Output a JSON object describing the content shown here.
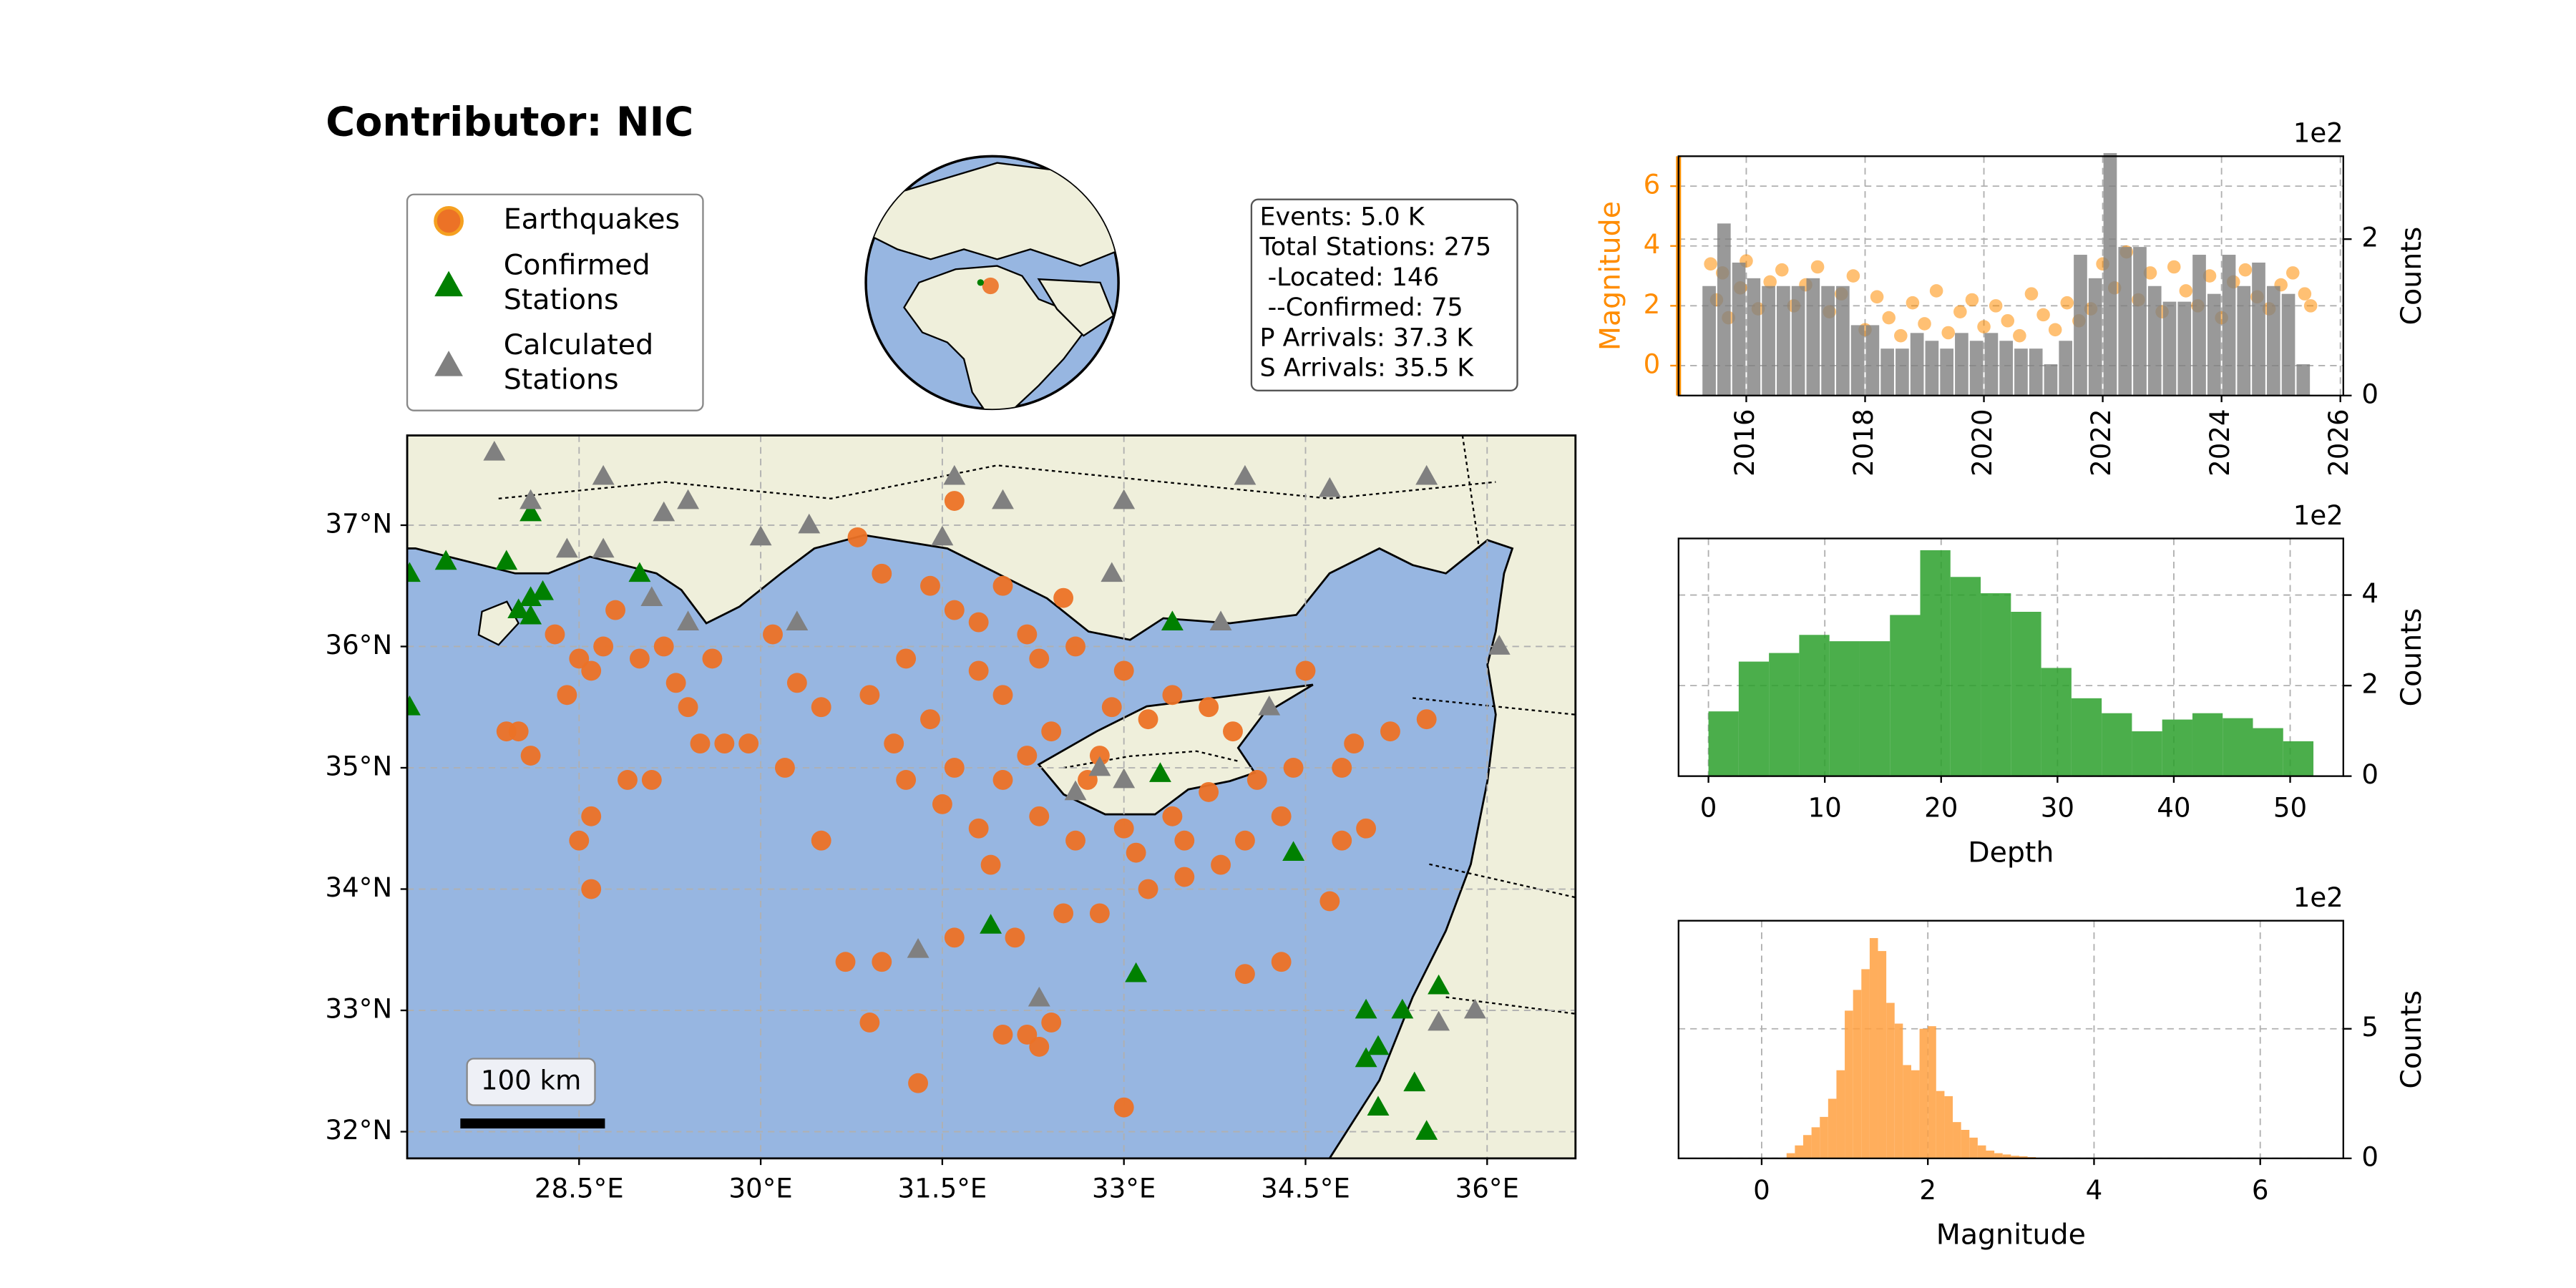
{
  "title": "Contributor: NIC",
  "stats": [
    "Events: 5.0 K",
    "Total Stations: 275",
    " -Located: 146",
    " --Confirmed: 75",
    "P Arrivals: 37.3 K",
    "S Arrivals: 35.5 K"
  ],
  "map": {
    "xlim": [
      27.08,
      36.73
    ],
    "ylim": [
      31.78,
      37.74
    ],
    "xticks": [
      {
        "value": 28.5,
        "label": "28.5°E"
      },
      {
        "value": 30,
        "label": "30°E"
      },
      {
        "value": 31.5,
        "label": "31.5°E"
      },
      {
        "value": 33,
        "label": "33°E"
      },
      {
        "value": 34.5,
        "label": "34.5°E"
      },
      {
        "value": 36,
        "label": "36°E"
      }
    ],
    "yticks": [
      {
        "value": 32,
        "label": "32°N"
      },
      {
        "value": 33,
        "label": "33°N"
      },
      {
        "value": 34,
        "label": "34°N"
      },
      {
        "value": 35,
        "label": "35°N"
      },
      {
        "value": 36,
        "label": "36°N"
      },
      {
        "value": 37,
        "label": "37°N"
      }
    ],
    "scale_bar": "100 km",
    "layers": [
      {
        "name": [
          "Earthquakes"
        ],
        "marker": "circle",
        "color": "#ec7226",
        "lon": [
          28.0,
          28.1,
          27.9,
          28.4,
          28.5,
          28.6,
          28.3,
          28.7,
          29.0,
          29.2,
          29.3,
          29.4,
          29.5,
          29.7,
          29.9,
          29.6,
          30.1,
          30.3,
          30.5,
          30.2,
          29.1,
          28.9,
          28.6,
          28.5,
          28.6,
          28.8,
          30.8,
          30.5,
          30.7,
          31.0,
          30.9,
          31.3,
          31.6,
          32.0,
          32.2,
          32.4,
          32.3,
          33.0,
          34.0,
          34.3,
          34.7,
          34.8,
          35.0,
          35.2,
          34.9,
          34.8,
          35.5,
          34.5,
          31.6,
          31.0,
          31.2,
          31.4,
          31.6,
          31.8,
          31.9,
          32.1,
          32.5,
          32.8,
          33.2,
          33.5,
          33.8,
          34.0,
          34.3,
          34.4,
          33.9,
          33.4,
          33.0,
          32.6,
          32.2,
          31.8,
          31.6,
          32.0,
          32.4,
          32.0,
          32.3,
          32.6,
          33.0,
          33.4,
          33.7,
          34.1,
          32.8,
          31.4,
          31.1,
          30.9,
          32.5,
          32.0,
          33.2,
          32.7,
          33.5,
          31.8,
          32.3,
          32.9,
          33.7,
          31.5,
          31.2,
          32.2,
          33.1
        ],
        "lat": [
          35.3,
          35.1,
          35.3,
          35.6,
          35.9,
          35.8,
          36.1,
          36.0,
          35.9,
          36.0,
          35.7,
          35.5,
          35.2,
          35.2,
          35.2,
          35.9,
          36.1,
          35.7,
          35.5,
          35.0,
          34.9,
          34.9,
          34.6,
          34.4,
          34.0,
          36.3,
          36.9,
          34.4,
          33.4,
          33.4,
          32.9,
          32.4,
          33.6,
          32.8,
          32.8,
          32.9,
          32.7,
          32.2,
          33.3,
          33.4,
          33.9,
          34.4,
          34.5,
          35.3,
          35.2,
          35.0,
          35.4,
          35.8,
          37.2,
          36.6,
          35.9,
          35.4,
          35.0,
          34.5,
          34.2,
          33.6,
          33.8,
          33.8,
          34.0,
          34.1,
          34.2,
          34.4,
          34.6,
          35.0,
          35.3,
          35.6,
          35.8,
          36.0,
          36.1,
          36.2,
          36.3,
          35.6,
          35.3,
          34.9,
          34.6,
          34.4,
          34.5,
          34.6,
          34.8,
          34.9,
          35.1,
          36.5,
          35.2,
          35.6,
          36.4,
          36.5,
          35.4,
          34.9,
          34.4,
          35.8,
          35.9,
          35.5,
          35.5,
          34.7,
          34.9,
          35.1,
          34.3
        ]
      },
      {
        "name": [
          "Confirmed",
          "Stations"
        ],
        "marker": "triangle",
        "color": "#008000",
        "lon": [
          27.1,
          27.4,
          27.9,
          28.0,
          28.1,
          28.1,
          28.2,
          28.1,
          29.0,
          27.1,
          31.9,
          33.1,
          33.4,
          34.4,
          35.0,
          35.1,
          35.0,
          35.1,
          35.4,
          35.5,
          35.3,
          35.6,
          33.3
        ],
        "lat": [
          36.6,
          36.7,
          36.7,
          36.3,
          36.4,
          36.25,
          36.45,
          37.1,
          36.6,
          35.5,
          33.7,
          33.3,
          36.2,
          34.3,
          32.6,
          32.2,
          33.0,
          32.7,
          32.4,
          32.0,
          33.0,
          33.2,
          34.95
        ]
      },
      {
        "name": [
          "Calculated",
          "Stations"
        ],
        "marker": "triangle",
        "color": "#808080",
        "lon": [
          27.8,
          28.1,
          28.7,
          29.2,
          29.4,
          30.0,
          30.4,
          31.6,
          31.5,
          32.0,
          33.0,
          34.0,
          34.7,
          35.5,
          33.8,
          32.9,
          30.3,
          29.4,
          28.7,
          28.4,
          29.1,
          31.3,
          32.3,
          35.6,
          35.9,
          36.1,
          34.2,
          32.8,
          32.6,
          33.0
        ],
        "lat": [
          37.6,
          37.2,
          37.4,
          37.1,
          37.2,
          36.9,
          37.0,
          37.4,
          36.9,
          37.2,
          37.2,
          37.4,
          37.3,
          37.4,
          36.2,
          36.6,
          36.2,
          36.2,
          36.8,
          36.8,
          36.4,
          33.5,
          33.1,
          32.9,
          33.0,
          36.0,
          35.5,
          35.0,
          34.8,
          34.9
        ]
      }
    ]
  },
  "chart_data": [
    {
      "type": "combo",
      "ylabel": "Magnitude",
      "y2label": "Counts",
      "y2_offset": "1e2",
      "grid": true,
      "xlim": [
        2014.86,
        2026.05
      ],
      "xticks": [
        2016,
        2018,
        2020,
        2022,
        2024,
        2026
      ],
      "ylim": [
        -1,
        7
      ],
      "yticks": [
        0,
        2,
        4,
        6
      ],
      "y2lim": [
        0,
        3.06
      ],
      "y2ticks": [
        0,
        2
      ],
      "series": [
        {
          "kind": "scatter",
          "color": "#ff8c00",
          "x": [
            2015.4,
            2015.5,
            2015.6,
            2015.7,
            2015.9,
            2016.0,
            2016.2,
            2016.4,
            2016.6,
            2016.8,
            2017.0,
            2017.2,
            2017.4,
            2017.6,
            2017.8,
            2018.0,
            2018.2,
            2018.4,
            2018.6,
            2018.8,
            2019.0,
            2019.2,
            2019.4,
            2019.6,
            2019.8,
            2020.0,
            2020.2,
            2020.4,
            2020.6,
            2020.8,
            2021.0,
            2021.2,
            2021.4,
            2021.6,
            2021.8,
            2022.0,
            2022.2,
            2022.4,
            2022.6,
            2022.8,
            2023.0,
            2023.2,
            2023.4,
            2023.6,
            2023.8,
            2024.0,
            2024.2,
            2024.4,
            2024.6,
            2024.8,
            2025.0,
            2025.2,
            2025.4,
            2025.5
          ],
          "values": [
            3.4,
            2.2,
            3.1,
            1.6,
            2.6,
            3.5,
            1.9,
            2.8,
            3.2,
            2.0,
            2.7,
            3.3,
            1.8,
            2.4,
            3.0,
            1.2,
            2.3,
            1.6,
            1.0,
            2.1,
            1.4,
            2.5,
            1.1,
            1.8,
            2.2,
            1.3,
            2.0,
            1.5,
            1.0,
            2.4,
            1.7,
            1.2,
            2.1,
            1.5,
            1.9,
            3.4,
            2.6,
            3.8,
            2.2,
            3.1,
            1.8,
            3.3,
            2.5,
            2.0,
            3.0,
            1.6,
            2.8,
            3.2,
            2.3,
            1.9,
            2.7,
            3.1,
            2.4,
            2.0
          ]
        },
        {
          "kind": "bar",
          "axis": "y2",
          "color": "#808080",
          "x": [
            2015.375,
            2015.625,
            2015.875,
            2016.125,
            2016.375,
            2016.625,
            2016.875,
            2017.125,
            2017.375,
            2017.625,
            2017.875,
            2018.125,
            2018.375,
            2018.625,
            2018.875,
            2019.125,
            2019.375,
            2019.625,
            2019.875,
            2020.125,
            2020.375,
            2020.625,
            2020.875,
            2021.125,
            2021.375,
            2021.625,
            2021.875,
            2022.125,
            2022.375,
            2022.625,
            2022.875,
            2023.125,
            2023.375,
            2023.625,
            2023.875,
            2024.125,
            2024.375,
            2024.625,
            2024.875,
            2025.125,
            2025.375
          ],
          "values": [
            1.4,
            2.2,
            1.7,
            1.5,
            1.4,
            1.4,
            1.4,
            1.5,
            1.4,
            1.4,
            0.9,
            0.9,
            0.6,
            0.6,
            0.8,
            0.7,
            0.6,
            0.8,
            0.7,
            0.8,
            0.7,
            0.6,
            0.6,
            0.4,
            0.7,
            1.8,
            1.5,
            3.1,
            1.9,
            1.9,
            1.4,
            1.2,
            1.2,
            1.8,
            1.3,
            1.8,
            1.4,
            1.7,
            1.4,
            1.3,
            0.4
          ]
        }
      ]
    },
    {
      "type": "histogram",
      "xlabel": "Depth",
      "ylabel": "Counts",
      "y_offset": "1e2",
      "color": "#2ca02c",
      "grid": true,
      "xlim": [
        -2.57,
        54.57
      ],
      "xticks": [
        0,
        10,
        20,
        30,
        40,
        50
      ],
      "ylim": [
        0,
        5.25
      ],
      "yticks": [
        0,
        2,
        4
      ],
      "bins": [
        0,
        2.6,
        5.2,
        7.8,
        10.4,
        13,
        15.6,
        18.2,
        20.8,
        23.4,
        26,
        28.6,
        31.2,
        33.8,
        36.4,
        39,
        41.6,
        44.2,
        46.8,
        49.4,
        52
      ],
      "values": [
        1.43,
        2.53,
        2.72,
        3.12,
        2.98,
        2.98,
        3.56,
        4.99,
        4.4,
        4.04,
        3.63,
        2.39,
        1.72,
        1.39,
        0.99,
        1.25,
        1.39,
        1.28,
        1.06,
        0.77
      ]
    },
    {
      "type": "histogram",
      "xlabel": "Magnitude",
      "ylabel": "Counts",
      "y_offset": "1e2",
      "color": "#ffa040",
      "grid": true,
      "xlim": [
        -1.0,
        7.0
      ],
      "xticks": [
        0,
        2,
        4,
        6
      ],
      "ylim": [
        0,
        9.17
      ],
      "yticks": [
        0,
        5
      ],
      "bins": [
        0.3,
        0.4,
        0.5,
        0.6,
        0.7,
        0.8,
        0.9,
        1.0,
        1.1,
        1.2,
        1.3,
        1.4,
        1.5,
        1.6,
        1.7,
        1.8,
        1.9,
        2.0,
        2.1,
        2.2,
        2.3,
        2.4,
        2.5,
        2.6,
        2.7,
        2.8,
        2.9,
        3.0,
        3.1,
        3.2,
        3.3
      ],
      "values": [
        0.2,
        0.5,
        0.9,
        1.2,
        1.6,
        2.3,
        3.4,
        5.7,
        6.5,
        7.3,
        8.5,
        8.0,
        6.0,
        5.2,
        3.6,
        3.4,
        5.0,
        5.1,
        2.6,
        2.4,
        1.4,
        1.1,
        0.8,
        0.5,
        0.3,
        0.2,
        0.15,
        0.1,
        0.08,
        0.05
      ]
    }
  ]
}
